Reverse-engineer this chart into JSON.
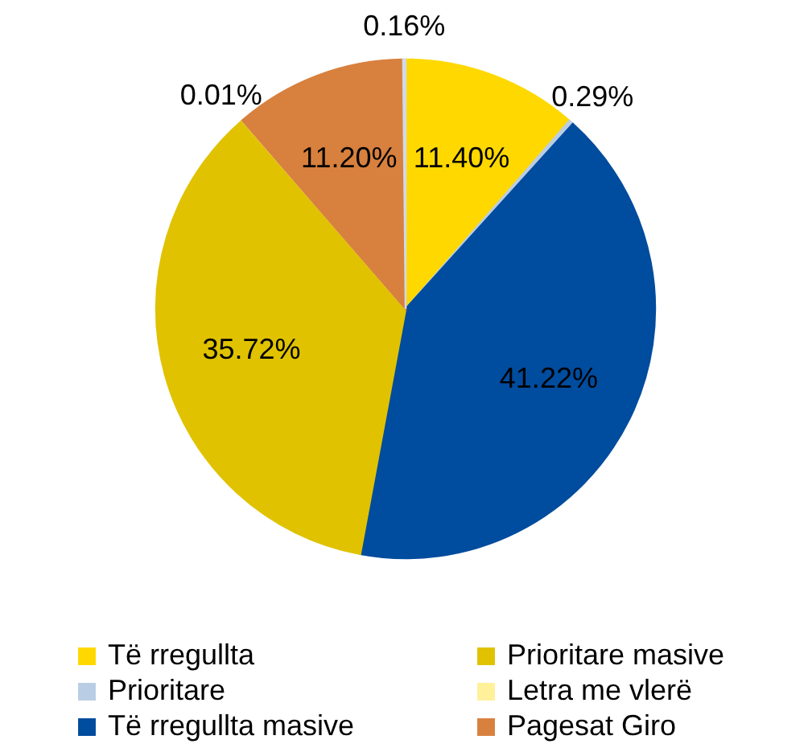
{
  "chart_data": {
    "type": "pie",
    "categories": [
      "Të rregullta",
      "Prioritare",
      "Të rregullta masive",
      "Prioritare masive",
      "Letra me vlerë",
      "Pagesat Giro",
      null
    ],
    "values": [
      11.4,
      0.29,
      41.22,
      35.72,
      0.01,
      11.2,
      0.16
    ],
    "colors": [
      "#ffd800",
      "#b9cde5",
      "#004c9e",
      "#e0c200",
      "#fff09a",
      "#d8803e",
      "#d0dae6"
    ],
    "value_labels": [
      "11.40%",
      "0.29%",
      "41.22%",
      "35.72%",
      "0.01%",
      "11.20%",
      "0.16%"
    ],
    "legend": "bottom"
  }
}
